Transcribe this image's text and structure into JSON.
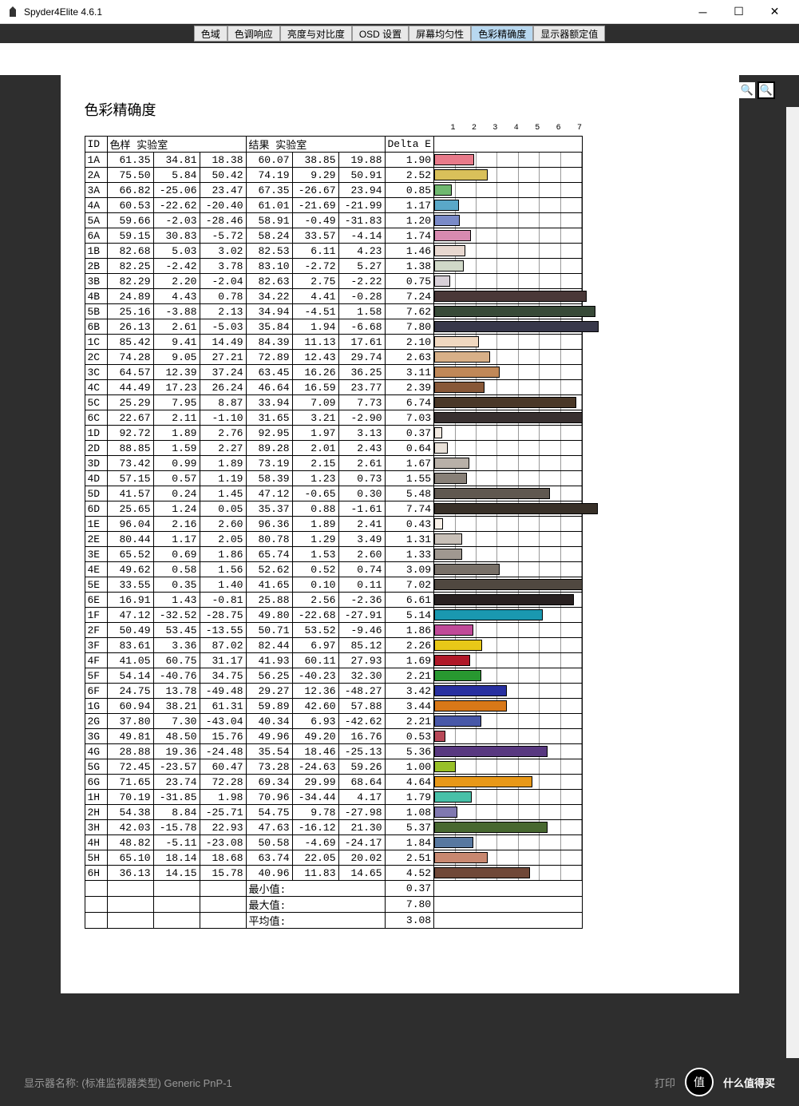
{
  "app": {
    "title": "Spyder4Elite 4.6.1"
  },
  "tabs": [
    "色域",
    "色调响应",
    "亮度与对比度",
    "OSD 设置",
    "屏幕均匀性",
    "色彩精确度",
    "显示器额定值"
  ],
  "active_tab_index": 5,
  "page_title": "色彩精确度",
  "table": {
    "headers": {
      "id": "ID",
      "sample": "色样 实验室",
      "result": "结果 实验室",
      "delta": "Delta E"
    },
    "axis_max": 7,
    "axis_labels": [
      "1",
      "2",
      "3",
      "4",
      "5",
      "6",
      "7"
    ],
    "rows": [
      {
        "id": "1A",
        "s": [
          61.35,
          34.81,
          18.38
        ],
        "r": [
          60.07,
          38.85,
          19.88
        ],
        "de": 1.9,
        "color": "#e87a8a"
      },
      {
        "id": "2A",
        "s": [
          75.5,
          5.84,
          50.42
        ],
        "r": [
          74.19,
          9.29,
          50.91
        ],
        "de": 2.52,
        "color": "#d9c05a"
      },
      {
        "id": "3A",
        "s": [
          66.82,
          -25.06,
          23.47
        ],
        "r": [
          67.35,
          -26.67,
          23.94
        ],
        "de": 0.85,
        "color": "#6fb86f"
      },
      {
        "id": "4A",
        "s": [
          60.53,
          -22.62,
          -20.4
        ],
        "r": [
          61.01,
          -21.69,
          -21.99
        ],
        "de": 1.17,
        "color": "#5aa8c8"
      },
      {
        "id": "5A",
        "s": [
          59.66,
          -2.03,
          -28.46
        ],
        "r": [
          58.91,
          -0.49,
          -31.83
        ],
        "de": 1.2,
        "color": "#7a8ac8"
      },
      {
        "id": "6A",
        "s": [
          59.15,
          30.83,
          -5.72
        ],
        "r": [
          58.24,
          33.57,
          -4.14
        ],
        "de": 1.74,
        "color": "#d88ab0"
      },
      {
        "id": "1B",
        "s": [
          82.68,
          5.03,
          3.02
        ],
        "r": [
          82.53,
          6.11,
          4.23
        ],
        "de": 1.46,
        "color": "#e8d8d0"
      },
      {
        "id": "2B",
        "s": [
          82.25,
          -2.42,
          3.78
        ],
        "r": [
          83.1,
          -2.72,
          5.27
        ],
        "de": 1.38,
        "color": "#d0d8c8"
      },
      {
        "id": "3B",
        "s": [
          82.29,
          2.2,
          -2.04
        ],
        "r": [
          82.63,
          2.75,
          -2.22
        ],
        "de": 0.75,
        "color": "#d8d0d8"
      },
      {
        "id": "4B",
        "s": [
          24.89,
          4.43,
          0.78
        ],
        "r": [
          34.22,
          4.41,
          -0.28
        ],
        "de": 7.24,
        "color": "#4a3838"
      },
      {
        "id": "5B",
        "s": [
          25.16,
          -3.88,
          2.13
        ],
        "r": [
          34.94,
          -4.51,
          1.58
        ],
        "de": 7.62,
        "color": "#384a38"
      },
      {
        "id": "6B",
        "s": [
          26.13,
          2.61,
          -5.03
        ],
        "r": [
          35.84,
          1.94,
          -6.68
        ],
        "de": 7.8,
        "color": "#38384a"
      },
      {
        "id": "1C",
        "s": [
          85.42,
          9.41,
          14.49
        ],
        "r": [
          84.39,
          11.13,
          17.61
        ],
        "de": 2.1,
        "color": "#f0d8c0"
      },
      {
        "id": "2C",
        "s": [
          74.28,
          9.05,
          27.21
        ],
        "r": [
          72.89,
          12.43,
          29.74
        ],
        "de": 2.63,
        "color": "#d8b088"
      },
      {
        "id": "3C",
        "s": [
          64.57,
          12.39,
          37.24
        ],
        "r": [
          63.45,
          16.26,
          36.25
        ],
        "de": 3.11,
        "color": "#c08858"
      },
      {
        "id": "4C",
        "s": [
          44.49,
          17.23,
          26.24
        ],
        "r": [
          46.64,
          16.59,
          23.77
        ],
        "de": 2.39,
        "color": "#885838"
      },
      {
        "id": "5C",
        "s": [
          25.29,
          7.95,
          8.87
        ],
        "r": [
          33.94,
          7.09,
          7.73
        ],
        "de": 6.74,
        "color": "#4a3828"
      },
      {
        "id": "6C",
        "s": [
          22.67,
          2.11,
          -1.1
        ],
        "r": [
          31.65,
          3.21,
          -2.9
        ],
        "de": 7.03,
        "color": "#383030"
      },
      {
        "id": "1D",
        "s": [
          92.72,
          1.89,
          2.76
        ],
        "r": [
          92.95,
          1.97,
          3.13
        ],
        "de": 0.37,
        "color": "#f0e8e0"
      },
      {
        "id": "2D",
        "s": [
          88.85,
          1.59,
          2.27
        ],
        "r": [
          89.28,
          2.01,
          2.43
        ],
        "de": 0.64,
        "color": "#e8e0d8"
      },
      {
        "id": "3D",
        "s": [
          73.42,
          0.99,
          1.89
        ],
        "r": [
          73.19,
          2.15,
          2.61
        ],
        "de": 1.67,
        "color": "#b8b0a8"
      },
      {
        "id": "4D",
        "s": [
          57.15,
          0.57,
          1.19
        ],
        "r": [
          58.39,
          1.23,
          0.73
        ],
        "de": 1.55,
        "color": "#888078"
      },
      {
        "id": "5D",
        "s": [
          41.57,
          0.24,
          1.45
        ],
        "r": [
          47.12,
          -0.65,
          0.3
        ],
        "de": 5.48,
        "color": "#605850"
      },
      {
        "id": "6D",
        "s": [
          25.65,
          1.24,
          0.05
        ],
        "r": [
          35.37,
          0.88,
          -1.61
        ],
        "de": 7.74,
        "color": "#383028"
      },
      {
        "id": "1E",
        "s": [
          96.04,
          2.16,
          2.6
        ],
        "r": [
          96.36,
          1.89,
          2.41
        ],
        "de": 0.43,
        "color": "#f8f0e8"
      },
      {
        "id": "2E",
        "s": [
          80.44,
          1.17,
          2.05
        ],
        "r": [
          80.78,
          1.29,
          3.49
        ],
        "de": 1.31,
        "color": "#c8c0b8"
      },
      {
        "id": "3E",
        "s": [
          65.52,
          0.69,
          1.86
        ],
        "r": [
          65.74,
          1.53,
          2.6
        ],
        "de": 1.33,
        "color": "#a09890"
      },
      {
        "id": "4E",
        "s": [
          49.62,
          0.58,
          1.56
        ],
        "r": [
          52.62,
          0.52,
          0.74
        ],
        "de": 3.09,
        "color": "#787068"
      },
      {
        "id": "5E",
        "s": [
          33.55,
          0.35,
          1.4
        ],
        "r": [
          41.65,
          0.1,
          0.11
        ],
        "de": 7.02,
        "color": "#504840"
      },
      {
        "id": "6E",
        "s": [
          16.91,
          1.43,
          -0.81
        ],
        "r": [
          25.88,
          2.56,
          -2.36
        ],
        "de": 6.61,
        "color": "#282020"
      },
      {
        "id": "1F",
        "s": [
          47.12,
          -32.52,
          -28.75
        ],
        "r": [
          49.8,
          -22.68,
          -27.91
        ],
        "de": 5.14,
        "color": "#1a98b0"
      },
      {
        "id": "2F",
        "s": [
          50.49,
          53.45,
          -13.55
        ],
        "r": [
          50.71,
          53.52,
          -9.46
        ],
        "de": 1.86,
        "color": "#c04a98"
      },
      {
        "id": "3F",
        "s": [
          83.61,
          3.36,
          87.02
        ],
        "r": [
          82.44,
          6.97,
          85.12
        ],
        "de": 2.26,
        "color": "#e8c818"
      },
      {
        "id": "4F",
        "s": [
          41.05,
          60.75,
          31.17
        ],
        "r": [
          41.93,
          60.11,
          27.93
        ],
        "de": 1.69,
        "color": "#b01828"
      },
      {
        "id": "5F",
        "s": [
          54.14,
          -40.76,
          34.75
        ],
        "r": [
          56.25,
          -40.23,
          32.3
        ],
        "de": 2.21,
        "color": "#289830"
      },
      {
        "id": "6F",
        "s": [
          24.75,
          13.78,
          -49.48
        ],
        "r": [
          29.27,
          12.36,
          -48.27
        ],
        "de": 3.42,
        "color": "#2830a0"
      },
      {
        "id": "1G",
        "s": [
          60.94,
          38.21,
          61.31
        ],
        "r": [
          59.89,
          42.6,
          57.88
        ],
        "de": 3.44,
        "color": "#d87818"
      },
      {
        "id": "2G",
        "s": [
          37.8,
          7.3,
          -43.04
        ],
        "r": [
          40.34,
          6.93,
          -42.62
        ],
        "de": 2.21,
        "color": "#4858a8"
      },
      {
        "id": "3G",
        "s": [
          49.81,
          48.5,
          15.76
        ],
        "r": [
          49.96,
          49.2,
          16.76
        ],
        "de": 0.53,
        "color": "#b84858"
      },
      {
        "id": "4G",
        "s": [
          28.88,
          19.36,
          -24.48
        ],
        "r": [
          35.54,
          18.46,
          -25.13
        ],
        "de": 5.36,
        "color": "#583880"
      },
      {
        "id": "5G",
        "s": [
          72.45,
          -23.57,
          60.47
        ],
        "r": [
          73.28,
          -24.63,
          59.26
        ],
        "de": 1.0,
        "color": "#98c028"
      },
      {
        "id": "6G",
        "s": [
          71.65,
          23.74,
          72.28
        ],
        "r": [
          69.34,
          29.99,
          68.64
        ],
        "de": 4.64,
        "color": "#e89818"
      },
      {
        "id": "1H",
        "s": [
          70.19,
          -31.85,
          1.98
        ],
        "r": [
          70.96,
          -34.44,
          4.17
        ],
        "de": 1.79,
        "color": "#48c0a8"
      },
      {
        "id": "2H",
        "s": [
          54.38,
          8.84,
          -25.71
        ],
        "r": [
          54.75,
          9.78,
          -27.98
        ],
        "de": 1.08,
        "color": "#8078b0"
      },
      {
        "id": "3H",
        "s": [
          42.03,
          -15.78,
          22.93
        ],
        "r": [
          47.63,
          -16.12,
          21.3
        ],
        "de": 5.37,
        "color": "#486830"
      },
      {
        "id": "4H",
        "s": [
          48.82,
          -5.11,
          -23.08
        ],
        "r": [
          50.58,
          -4.69,
          -24.17
        ],
        "de": 1.84,
        "color": "#5878a0"
      },
      {
        "id": "5H",
        "s": [
          65.1,
          18.14,
          18.68
        ],
        "r": [
          63.74,
          22.05,
          20.02
        ],
        "de": 2.51,
        "color": "#c88870"
      },
      {
        "id": "6H",
        "s": [
          36.13,
          14.15,
          15.78
        ],
        "r": [
          40.96,
          11.83,
          14.65
        ],
        "de": 4.52,
        "color": "#704838"
      }
    ],
    "summary": [
      {
        "label": "最小值:",
        "value": 0.37
      },
      {
        "label": "最大值:",
        "value": 7.8
      },
      {
        "label": "平均值:",
        "value": 3.08
      }
    ]
  },
  "footer": {
    "monitor_label": "显示器名称: (标准监视器类型) Generic PnP-1",
    "print": "打印",
    "badge": "值",
    "tagline": "什么值得买"
  }
}
